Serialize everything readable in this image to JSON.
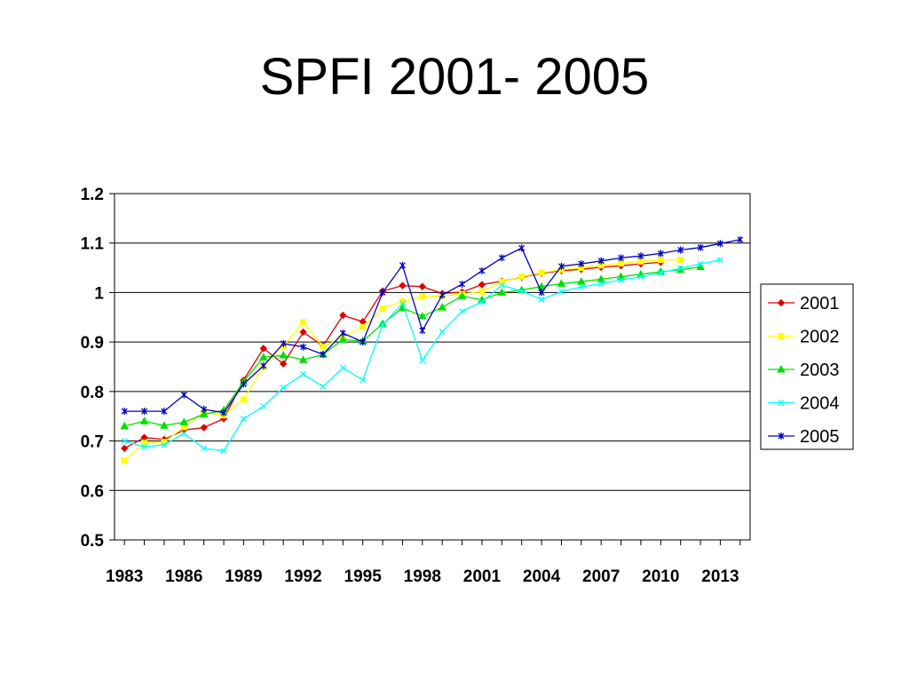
{
  "slide": {
    "title": "SPFI 2001- 2005"
  },
  "chart_data": {
    "type": "line",
    "title": "SPFI 2001- 2005",
    "xlabel": "",
    "ylabel": "",
    "x": [
      1983,
      1984,
      1985,
      1986,
      1987,
      1988,
      1989,
      1990,
      1991,
      1992,
      1993,
      1994,
      1995,
      1996,
      1997,
      1998,
      1999,
      2000,
      2001,
      2002,
      2003,
      2004,
      2005,
      2006,
      2007,
      2008,
      2009,
      2010,
      2011,
      2012,
      2013,
      2014
    ],
    "xticks": [
      1983,
      1986,
      1989,
      1992,
      1995,
      1998,
      2001,
      2004,
      2007,
      2010,
      2013
    ],
    "xlim": [
      1982.5,
      2014.5
    ],
    "ylim": [
      0.5,
      1.2
    ],
    "yticks": [
      0.5,
      0.6,
      0.7,
      0.8,
      0.9,
      1.0,
      1.1,
      1.2
    ],
    "ytick_labels": [
      "0.5",
      "0.6",
      "0.7",
      "0.8",
      "0.9",
      "1",
      "1.1",
      "1.2"
    ],
    "grid": "horizontal",
    "legend_position": "right",
    "series": [
      {
        "name": "2001",
        "color": "#e00000",
        "marker": "diamond",
        "x": [
          1983,
          1984,
          1985,
          1986,
          1987,
          1988,
          1989,
          1990,
          1991,
          1992,
          1993,
          1994,
          1995,
          1996,
          1997,
          1998,
          1999,
          2000,
          2001,
          2002,
          2003,
          2004,
          2005,
          2006,
          2007,
          2008,
          2009,
          2010
        ],
        "values": [
          0.685,
          0.707,
          0.703,
          0.722,
          0.727,
          0.745,
          0.823,
          0.887,
          0.856,
          0.92,
          0.892,
          0.954,
          0.941,
          1.003,
          1.014,
          1.012,
          0.998,
          1.001,
          1.016,
          1.023,
          1.031,
          1.039,
          1.044,
          1.047,
          1.051,
          1.054,
          1.058,
          1.061
        ]
      },
      {
        "name": "2002",
        "color": "#ffff00",
        "marker": "square",
        "x": [
          1983,
          1984,
          1985,
          1986,
          1987,
          1988,
          1989,
          1990,
          1991,
          1992,
          1993,
          1994,
          1995,
          1996,
          1997,
          1998,
          1999,
          2000,
          2001,
          2002,
          2003,
          2004,
          2005,
          2006,
          2007,
          2008,
          2009,
          2010,
          2011
        ],
        "values": [
          0.66,
          0.696,
          0.698,
          0.728,
          0.758,
          0.752,
          0.784,
          0.85,
          0.892,
          0.94,
          0.89,
          0.91,
          0.93,
          0.968,
          0.982,
          0.992,
          0.993,
          0.997,
          1.002,
          1.022,
          1.032,
          1.04,
          1.046,
          1.05,
          1.055,
          1.059,
          1.063,
          1.066,
          1.066
        ]
      },
      {
        "name": "2003",
        "color": "#00e000",
        "marker": "triangle",
        "x": [
          1983,
          1984,
          1985,
          1986,
          1987,
          1988,
          1989,
          1990,
          1991,
          1992,
          1993,
          1994,
          1995,
          1996,
          1997,
          1998,
          1999,
          2000,
          2001,
          2002,
          2003,
          2004,
          2005,
          2006,
          2007,
          2008,
          2009,
          2010,
          2011,
          2012
        ],
        "values": [
          0.73,
          0.74,
          0.731,
          0.738,
          0.754,
          0.762,
          0.82,
          0.869,
          0.873,
          0.864,
          0.875,
          0.905,
          0.902,
          0.937,
          0.969,
          0.952,
          0.97,
          0.993,
          0.985,
          1.0,
          1.005,
          1.012,
          1.018,
          1.022,
          1.027,
          1.032,
          1.037,
          1.042,
          1.046,
          1.052
        ]
      },
      {
        "name": "2004",
        "color": "#00ffff",
        "marker": "x",
        "x": [
          1983,
          1984,
          1985,
          1986,
          1987,
          1988,
          1989,
          1990,
          1991,
          1992,
          1993,
          1994,
          1995,
          1996,
          1997,
          1998,
          1999,
          2000,
          2001,
          2002,
          2003,
          2004,
          2005,
          2006,
          2007,
          2008,
          2009,
          2010,
          2011,
          2012,
          2013
        ],
        "values": [
          0.7,
          0.688,
          0.692,
          0.715,
          0.685,
          0.68,
          0.745,
          0.77,
          0.808,
          0.835,
          0.81,
          0.848,
          0.823,
          0.935,
          0.978,
          0.863,
          0.921,
          0.962,
          0.981,
          1.015,
          1.003,
          0.986,
          1.002,
          1.011,
          1.018,
          1.025,
          1.032,
          1.04,
          1.049,
          1.058,
          1.066
        ]
      },
      {
        "name": "2005",
        "color": "#0000c0",
        "marker": "star",
        "x": [
          1983,
          1984,
          1985,
          1986,
          1987,
          1988,
          1989,
          1990,
          1991,
          1992,
          1993,
          1994,
          1995,
          1996,
          1997,
          1998,
          1999,
          2000,
          2001,
          2002,
          2003,
          2004,
          2005,
          2006,
          2007,
          2008,
          2009,
          2010,
          2011,
          2012,
          2013,
          2014
        ],
        "values": [
          0.76,
          0.76,
          0.76,
          0.793,
          0.764,
          0.757,
          0.815,
          0.852,
          0.897,
          0.89,
          0.875,
          0.918,
          0.9,
          1.0,
          1.055,
          0.923,
          0.995,
          1.017,
          1.044,
          1.07,
          1.09,
          1.0,
          1.053,
          1.058,
          1.064,
          1.07,
          1.074,
          1.079,
          1.086,
          1.091,
          1.099,
          1.107
        ]
      }
    ]
  }
}
